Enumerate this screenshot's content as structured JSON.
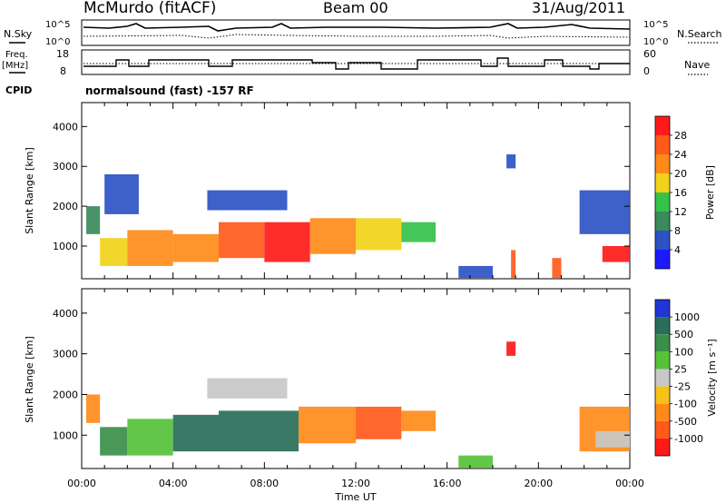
{
  "header": {
    "station": "McMurdo (fitACF)",
    "beam": "Beam 00",
    "date": "31/Aug/2011"
  },
  "aux_panels": {
    "nsky": {
      "label": "N.Sky",
      "ticks": [
        "10^5",
        "10^0"
      ]
    },
    "nsearch": {
      "label": "N.Search",
      "ticks": [
        "10^5",
        "10^0"
      ]
    },
    "freq": {
      "label_line1": "Freq.",
      "label_line2": "[MHz]",
      "ticks": [
        "18",
        "8"
      ]
    },
    "nave": {
      "label": "Nave",
      "ticks": [
        "60",
        "0"
      ]
    },
    "cpid": {
      "label": "CPID",
      "value": "normalsound (fast) -157 RF"
    }
  },
  "chart_data": [
    {
      "type": "heatmap",
      "name": "power",
      "xlabel": "Time UT",
      "ylabel": "Slant Range [km]",
      "ylim": [
        180,
        4600
      ],
      "xlim": [
        0,
        24
      ],
      "y_ticks": [
        "1000",
        "2000",
        "3000",
        "4000"
      ],
      "colorbar": {
        "label": "Power [dB]",
        "labels": [
          "4",
          "8",
          "12",
          "16",
          "20",
          "24",
          "28"
        ],
        "colors": [
          "#1a1aff",
          "#2c53c4",
          "#3a8a5a",
          "#35c14a",
          "#f2d21a",
          "#ff8a1a",
          "#ff5a1a",
          "#ff1a1a"
        ]
      },
      "regions": [
        {
          "t0": 0.2,
          "t1": 0.8,
          "r0": 1300,
          "r1": 2000,
          "level": 2
        },
        {
          "t0": 0.8,
          "t1": 2.0,
          "r0": 500,
          "r1": 1200,
          "level": 4
        },
        {
          "t0": 2.0,
          "t1": 4.0,
          "r0": 500,
          "r1": 1400,
          "level": 5
        },
        {
          "t0": 4.0,
          "t1": 6.0,
          "r0": 600,
          "r1": 1300,
          "level": 5
        },
        {
          "t0": 6.0,
          "t1": 8.0,
          "r0": 700,
          "r1": 1600,
          "level": 6
        },
        {
          "t0": 8.0,
          "t1": 10.0,
          "r0": 600,
          "r1": 1600,
          "level": 7
        },
        {
          "t0": 10.0,
          "t1": 12.0,
          "r0": 800,
          "r1": 1700,
          "level": 5
        },
        {
          "t0": 12.0,
          "t1": 14.0,
          "r0": 900,
          "r1": 1700,
          "level": 4
        },
        {
          "t0": 14.0,
          "t1": 15.5,
          "r0": 1100,
          "r1": 1600,
          "level": 3
        },
        {
          "t0": 1.0,
          "t1": 2.5,
          "r0": 1800,
          "r1": 2800,
          "level": 1
        },
        {
          "t0": 5.5,
          "t1": 9.0,
          "r0": 1900,
          "r1": 2400,
          "level": 1
        },
        {
          "t0": 16.5,
          "t1": 18.0,
          "r0": 200,
          "r1": 500,
          "level": 1
        },
        {
          "t0": 18.6,
          "t1": 19.0,
          "r0": 2950,
          "r1": 3300,
          "level": 1
        },
        {
          "t0": 18.8,
          "t1": 19.0,
          "r0": 200,
          "r1": 900,
          "level": 6
        },
        {
          "t0": 20.6,
          "t1": 21.0,
          "r0": 200,
          "r1": 700,
          "level": 6
        },
        {
          "t0": 21.8,
          "t1": 24.0,
          "r0": 1300,
          "r1": 2400,
          "level": 1
        },
        {
          "t0": 22.8,
          "t1": 24.0,
          "r0": 600,
          "r1": 1000,
          "level": 7
        }
      ]
    },
    {
      "type": "heatmap",
      "name": "velocity",
      "xlabel": "Time UT",
      "ylabel": "Slant Range [km]",
      "ylim": [
        180,
        4600
      ],
      "xlim": [
        0,
        24
      ],
      "y_ticks": [
        "1000",
        "2000",
        "3000",
        "4000"
      ],
      "x_ticks": [
        "00:00",
        "04:00",
        "08:00",
        "12:00",
        "16:00",
        "20:00",
        "00:00"
      ],
      "colorbar": {
        "label": "Velocity [m s⁻¹]",
        "labels": [
          "1000",
          "500",
          "100",
          "25",
          "-25",
          "-100",
          "-500",
          "-1000"
        ],
        "colors": [
          "#2036d8",
          "#2a6e5a",
          "#3a8f4a",
          "#55c238",
          "#c8c8c8",
          "#f6c21a",
          "#ff8a1a",
          "#ff5a1a",
          "#ff1a1a"
        ]
      },
      "regions": [
        {
          "t0": 0.2,
          "t1": 0.8,
          "r0": 1300,
          "r1": 2000,
          "level": 6
        },
        {
          "t0": 0.8,
          "t1": 2.0,
          "r0": 500,
          "r1": 1200,
          "level": 2
        },
        {
          "t0": 2.0,
          "t1": 4.0,
          "r0": 500,
          "r1": 1400,
          "level": 3
        },
        {
          "t0": 4.0,
          "t1": 6.0,
          "r0": 600,
          "r1": 1500,
          "level": 1
        },
        {
          "t0": 6.0,
          "t1": 9.5,
          "r0": 600,
          "r1": 1600,
          "level": 1
        },
        {
          "t0": 9.5,
          "t1": 12.0,
          "r0": 800,
          "r1": 1700,
          "level": 6
        },
        {
          "t0": 12.0,
          "t1": 14.0,
          "r0": 900,
          "r1": 1700,
          "level": 7
        },
        {
          "t0": 14.0,
          "t1": 15.5,
          "r0": 1100,
          "r1": 1600,
          "level": 6
        },
        {
          "t0": 5.5,
          "t1": 9.0,
          "r0": 1900,
          "r1": 2400,
          "level": 4
        },
        {
          "t0": 16.5,
          "t1": 18.0,
          "r0": 200,
          "r1": 500,
          "level": 3
        },
        {
          "t0": 18.6,
          "t1": 19.0,
          "r0": 2950,
          "r1": 3300,
          "level": 8
        },
        {
          "t0": 21.8,
          "t1": 24.0,
          "r0": 600,
          "r1": 1700,
          "level": 6
        },
        {
          "t0": 22.5,
          "t1": 24.0,
          "r0": 700,
          "r1": 1100,
          "level": 4
        }
      ]
    }
  ]
}
